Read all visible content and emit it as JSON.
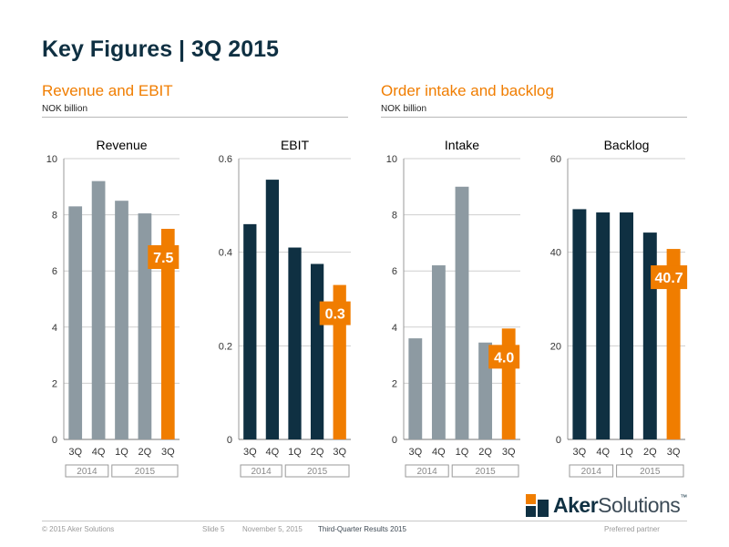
{
  "page": {
    "title": "Key Figures | 3Q 2015",
    "left_section": {
      "title": "Revenue and EBIT",
      "unit": "NOK billion"
    },
    "right_section": {
      "title": "Order intake and backlog",
      "unit": "NOK billion"
    }
  },
  "colors": {
    "grey": "#8d9aa2",
    "navy": "#0f3042",
    "orange": "#f07d00",
    "title": "#0f3042"
  },
  "chart_data": [
    {
      "type": "bar",
      "title": "Revenue",
      "categories": [
        "3Q",
        "4Q",
        "1Q",
        "2Q",
        "3Q"
      ],
      "year_groups": [
        {
          "label": "2014",
          "span": 2
        },
        {
          "label": "2015",
          "span": 3
        }
      ],
      "values": [
        8.3,
        9.2,
        8.5,
        8.05,
        7.5
      ],
      "bar_colors": [
        "grey",
        "grey",
        "grey",
        "grey",
        "orange"
      ],
      "ylim": [
        0,
        10
      ],
      "yticks": [
        "0",
        "2",
        "4",
        "6",
        "8",
        "10"
      ],
      "highlight_label": "7.5",
      "grid": true
    },
    {
      "type": "bar",
      "title": "EBIT",
      "categories": [
        "3Q",
        "4Q",
        "1Q",
        "2Q",
        "3Q"
      ],
      "year_groups": [
        {
          "label": "2014",
          "span": 2
        },
        {
          "label": "2015",
          "span": 3
        }
      ],
      "values": [
        0.46,
        0.555,
        0.41,
        0.375,
        0.33
      ],
      "bar_colors": [
        "navy",
        "navy",
        "navy",
        "navy",
        "orange"
      ],
      "ylim": [
        0,
        0.6
      ],
      "yticks": [
        "0",
        "0.2",
        "0.4",
        "0.6"
      ],
      "highlight_label": "0.3",
      "grid": true
    },
    {
      "type": "bar",
      "title": "Intake",
      "categories": [
        "3Q",
        "4Q",
        "1Q",
        "2Q",
        "3Q"
      ],
      "year_groups": [
        {
          "label": "2014",
          "span": 2
        },
        {
          "label": "2015",
          "span": 3
        }
      ],
      "values": [
        3.6,
        6.2,
        9.0,
        3.45,
        3.95
      ],
      "bar_colors": [
        "grey",
        "grey",
        "grey",
        "grey",
        "orange"
      ],
      "ylim": [
        0,
        10
      ],
      "yticks": [
        "0",
        "2",
        "4",
        "6",
        "8",
        "10"
      ],
      "highlight_label": "4.0",
      "grid": true
    },
    {
      "type": "bar",
      "title": "Backlog",
      "categories": [
        "3Q",
        "4Q",
        "1Q",
        "2Q",
        "3Q"
      ],
      "year_groups": [
        {
          "label": "2014",
          "span": 2
        },
        {
          "label": "2015",
          "span": 3
        }
      ],
      "values": [
        49.2,
        48.5,
        48.5,
        44.2,
        40.7
      ],
      "bar_colors": [
        "navy",
        "navy",
        "navy",
        "navy",
        "orange"
      ],
      "ylim": [
        0,
        60
      ],
      "yticks": [
        "0",
        "20",
        "40",
        "60"
      ],
      "highlight_label": "40.7",
      "grid": true
    }
  ],
  "footer": {
    "copyright": "© 2015 Aker Solutions",
    "slide": "Slide 5",
    "date": "November 5, 2015",
    "presentation": "Third-Quarter Results 2015",
    "tagline": "Preferred partner"
  },
  "logo": {
    "bold": "Aker",
    "light": "Solutions",
    "trademark": "™"
  }
}
